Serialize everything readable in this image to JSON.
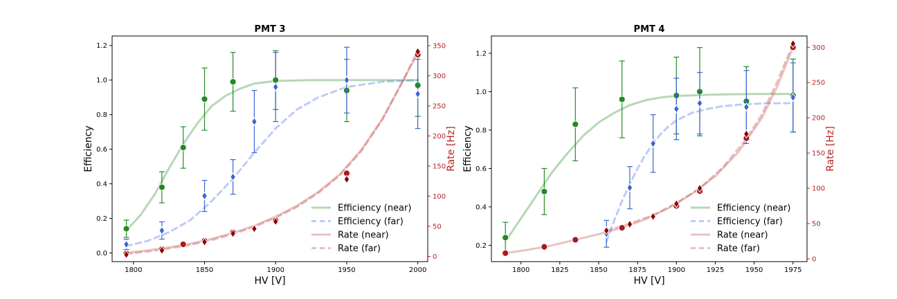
{
  "chart_data": [
    {
      "type": "scatter",
      "title": "PMT 3",
      "xlabel": "HV [V]",
      "ylabel": "Efficiency",
      "ylabel_right": "Rate [Hz]",
      "xlim": [
        1785,
        2007
      ],
      "ylim": [
        -0.05,
        1.255
      ],
      "ylim_right": [
        -8.7,
        366
      ],
      "xticks": [
        1800,
        1850,
        1900,
        1950,
        2000
      ],
      "yticks": [
        0.0,
        0.2,
        0.4,
        0.6,
        0.8,
        1.0,
        1.2
      ],
      "yticks_right": [
        0,
        50,
        100,
        150,
        200,
        250,
        300,
        350
      ],
      "legend_position": "lower right",
      "legend": [
        {
          "label": "Efficiency (near)",
          "color": "#2e8b2e",
          "style": "solid"
        },
        {
          "label": "Efficiency (far)",
          "color": "#4169e1",
          "style": "dashed"
        },
        {
          "label": "Rate (near)",
          "color": "#c0504d",
          "style": "solid"
        },
        {
          "label": "Rate (far)",
          "color": "#c0504d",
          "style": "dashed"
        }
      ],
      "colors": {
        "near_eff": "#228b22",
        "far_eff": "#3b63d6",
        "rate_near": "#a61c1c",
        "rate_far": "#8b0000"
      },
      "series": [
        {
          "id": "eff_near",
          "axis": "left",
          "marker": "circle",
          "color": "#228b22",
          "x": [
            1795,
            1820,
            1835,
            1850,
            1870,
            1900,
            1950,
            2000
          ],
          "y": [
            0.14,
            0.38,
            0.61,
            0.89,
            0.99,
            1.0,
            0.94,
            0.97
          ],
          "yerr": [
            0.05,
            0.09,
            0.12,
            0.18,
            0.17,
            0.17,
            0.18,
            0.18
          ]
        },
        {
          "id": "eff_far",
          "axis": "left",
          "marker": "diamond",
          "color": "#3b63d6",
          "x": [
            1795,
            1820,
            1850,
            1870,
            1885,
            1900,
            1950,
            2000
          ],
          "y": [
            0.05,
            0.13,
            0.33,
            0.44,
            0.76,
            0.96,
            1.0,
            0.92
          ],
          "yerr": [
            0.03,
            0.05,
            0.09,
            0.1,
            0.18,
            0.2,
            0.19,
            0.2
          ]
        },
        {
          "id": "rate_near",
          "axis": "right",
          "marker": "circle",
          "color": "#a61c1c",
          "x": [
            1795,
            1820,
            1835,
            1850,
            1870,
            1900,
            1950,
            2000
          ],
          "y": [
            5,
            12,
            20,
            26,
            40,
            60,
            138,
            335
          ]
        },
        {
          "id": "rate_far",
          "axis": "right",
          "marker": "diamond",
          "color": "#8b0000",
          "x": [
            1795,
            1820,
            1850,
            1870,
            1885,
            1900,
            1950,
            2000
          ],
          "y": [
            3,
            10,
            24,
            38,
            46,
            58,
            128,
            340
          ]
        }
      ],
      "fits": [
        {
          "id": "fit_eff_near",
          "axis": "left",
          "style": "solid",
          "color": "#2e8b2e",
          "x": [
            1795,
            1805,
            1815,
            1825,
            1835,
            1845,
            1855,
            1865,
            1875,
            1885,
            1900,
            1925,
            1950,
            1975,
            2000
          ],
          "y": [
            0.13,
            0.22,
            0.34,
            0.49,
            0.63,
            0.75,
            0.85,
            0.91,
            0.95,
            0.98,
            0.995,
            1.0,
            1.0,
            1.0,
            1.0
          ]
        },
        {
          "id": "fit_eff_far",
          "axis": "left",
          "style": "dashed",
          "color": "#4169e1",
          "x": [
            1795,
            1810,
            1825,
            1840,
            1855,
            1870,
            1885,
            1900,
            1915,
            1930,
            1950,
            1975,
            2000
          ],
          "y": [
            0.04,
            0.07,
            0.12,
            0.19,
            0.3,
            0.43,
            0.58,
            0.72,
            0.83,
            0.9,
            0.96,
            0.99,
            1.0
          ]
        },
        {
          "id": "fit_rate_near",
          "axis": "right",
          "style": "solid",
          "color": "#c0504d",
          "x": [
            1795,
            1810,
            1825,
            1840,
            1855,
            1870,
            1885,
            1900,
            1915,
            1930,
            1945,
            1960,
            1975,
            1990,
            2000
          ],
          "y": [
            6,
            10,
            15,
            21,
            29,
            39,
            51,
            66,
            84,
            107,
            136,
            176,
            228,
            293,
            338
          ]
        },
        {
          "id": "fit_rate_far",
          "axis": "right",
          "style": "dashed",
          "color": "#c0504d",
          "x": [
            1795,
            1810,
            1825,
            1840,
            1855,
            1870,
            1885,
            1900,
            1915,
            1930,
            1945,
            1960,
            1975,
            1990,
            2000
          ],
          "y": [
            4,
            8,
            13,
            19,
            27,
            37,
            49,
            64,
            82,
            105,
            134,
            174,
            227,
            294,
            342
          ]
        }
      ]
    },
    {
      "type": "scatter",
      "title": "PMT 4",
      "xlabel": "HV [V]",
      "ylabel": "Efficiency",
      "ylabel_right": "Rate [Hz]",
      "xlim": [
        1781,
        1984
      ],
      "ylim": [
        0.115,
        1.29
      ],
      "ylim_right": [
        -4,
        316
      ],
      "xticks": [
        1800,
        1825,
        1850,
        1875,
        1900,
        1925,
        1950,
        1975
      ],
      "yticks": [
        0.2,
        0.4,
        0.6,
        0.8,
        1.0,
        1.2
      ],
      "yticks_right": [
        0,
        50,
        100,
        150,
        200,
        250,
        300
      ],
      "legend_position": "lower right",
      "legend": [
        {
          "label": "Efficiency (near)",
          "color": "#2e8b2e",
          "style": "solid"
        },
        {
          "label": "Efficiency (far)",
          "color": "#4169e1",
          "style": "dashed"
        },
        {
          "label": "Rate (near)",
          "color": "#c0504d",
          "style": "solid"
        },
        {
          "label": "Rate (far)",
          "color": "#c0504d",
          "style": "dashed"
        }
      ],
      "colors": {
        "near_eff": "#228b22",
        "far_eff": "#3b63d6",
        "rate_near": "#a61c1c",
        "rate_far": "#8b0000"
      },
      "series": [
        {
          "id": "eff_near",
          "axis": "left",
          "marker": "circle",
          "color": "#228b22",
          "x": [
            1790,
            1815,
            1835,
            1865,
            1900,
            1915,
            1945,
            1975
          ],
          "y": [
            0.24,
            0.48,
            0.83,
            0.96,
            0.98,
            1.0,
            0.95,
            0.98
          ],
          "yerr": [
            0.08,
            0.12,
            0.19,
            0.2,
            0.2,
            0.23,
            0.18,
            0.19
          ]
        },
        {
          "id": "eff_far",
          "axis": "left",
          "marker": "diamond",
          "color": "#3b63d6",
          "x": [
            1855,
            1870,
            1885,
            1900,
            1915,
            1945,
            1975
          ],
          "y": [
            0.26,
            0.5,
            0.73,
            0.91,
            0.94,
            0.92,
            0.97
          ],
          "yerr": [
            0.07,
            0.11,
            0.15,
            0.16,
            0.16,
            0.19,
            0.18
          ]
        },
        {
          "id": "rate_near",
          "axis": "right",
          "marker": "circle",
          "color": "#a61c1c",
          "x": [
            1790,
            1815,
            1835,
            1865,
            1900,
            1915,
            1945,
            1975
          ],
          "y": [
            8,
            17,
            27,
            44,
            75,
            96,
            171,
            300
          ]
        },
        {
          "id": "rate_far",
          "axis": "right",
          "marker": "diamond",
          "color": "#8b0000",
          "x": [
            1855,
            1870,
            1885,
            1900,
            1915,
            1945,
            1975
          ],
          "y": [
            40,
            49,
            60,
            78,
            100,
            177,
            305
          ]
        }
      ],
      "fits": [
        {
          "id": "fit_eff_near",
          "axis": "left",
          "style": "solid",
          "color": "#2e8b2e",
          "x": [
            1790,
            1800,
            1810,
            1820,
            1830,
            1840,
            1850,
            1860,
            1870,
            1880,
            1890,
            1900,
            1925,
            1950,
            1975
          ],
          "y": [
            0.22,
            0.34,
            0.46,
            0.58,
            0.68,
            0.77,
            0.84,
            0.89,
            0.93,
            0.955,
            0.97,
            0.978,
            0.985,
            0.988,
            0.988
          ]
        },
        {
          "id": "fit_eff_far",
          "axis": "left",
          "style": "dashed",
          "color": "#4169e1",
          "x": [
            1855,
            1860,
            1865,
            1870,
            1875,
            1880,
            1885,
            1890,
            1895,
            1900,
            1910,
            1920,
            1930,
            1945,
            1960,
            1975
          ],
          "y": [
            0.22,
            0.33,
            0.43,
            0.52,
            0.6,
            0.67,
            0.73,
            0.78,
            0.82,
            0.85,
            0.89,
            0.91,
            0.925,
            0.935,
            0.94,
            0.94
          ]
        },
        {
          "id": "fit_rate_near",
          "axis": "right",
          "style": "solid",
          "color": "#c0504d",
          "x": [
            1790,
            1805,
            1820,
            1835,
            1850,
            1865,
            1880,
            1895,
            1910,
            1925,
            1940,
            1955,
            1965,
            1975
          ],
          "y": [
            8,
            13,
            19,
            27,
            35,
            44,
            56,
            72,
            92,
            117,
            152,
            200,
            245,
            300
          ]
        },
        {
          "id": "fit_rate_far",
          "axis": "right",
          "style": "dashed",
          "color": "#c0504d",
          "x": [
            1855,
            1870,
            1885,
            1900,
            1915,
            1930,
            1945,
            1955,
            1965,
            1975
          ],
          "y": [
            40,
            50,
            62,
            79,
            100,
            130,
            170,
            205,
            252,
            305
          ]
        }
      ]
    }
  ]
}
